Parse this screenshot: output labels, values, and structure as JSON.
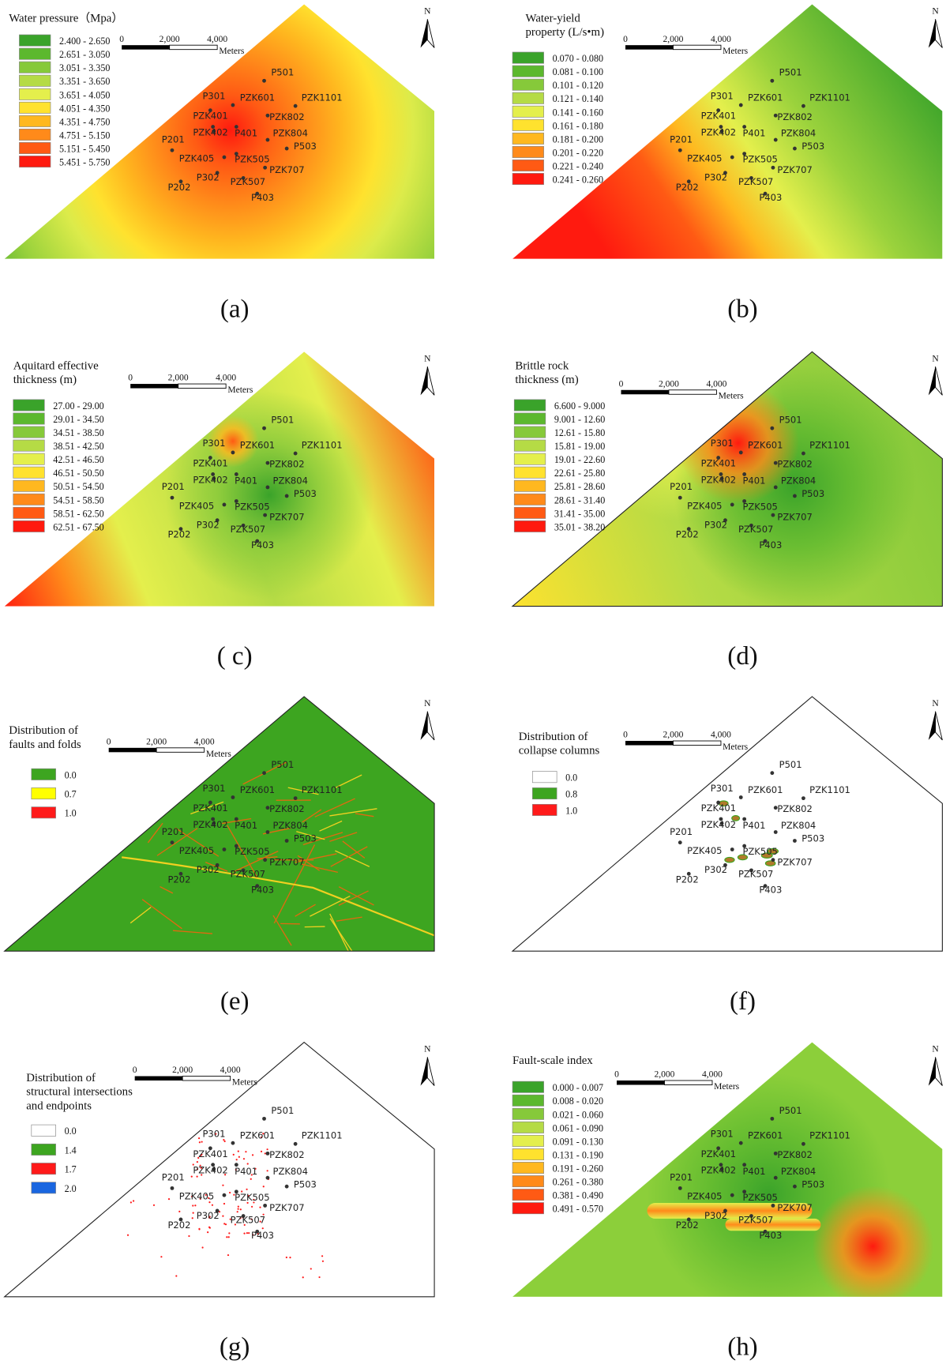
{
  "figure": {
    "north": "N",
    "scale_labels": [
      "0",
      "2,000",
      "4,000"
    ],
    "scale_unit": "Meters",
    "wells": [
      "P501",
      "P301",
      "PZK601",
      "PZK1101",
      "PZK401",
      "PZK802",
      "PZK402",
      "P401",
      "PZK804",
      "P201",
      "P503",
      "PZK405",
      "PZK505",
      "PZK707",
      "P302",
      "PZK507",
      "P202",
      "P403"
    ],
    "panels": [
      {
        "title_lines": [
          "Water pressure（Mpa）"
        ],
        "caption": "(a)",
        "legend": [
          {
            "label": "2.400 - 2.650",
            "color": "#3aa32a"
          },
          {
            "label": "2.651 - 3.050",
            "color": "#5cb82e"
          },
          {
            "label": "3.051 - 3.350",
            "color": "#86c93a"
          },
          {
            "label": "3.351 - 3.650",
            "color": "#b5db45"
          },
          {
            "label": "3.651 - 4.050",
            "color": "#e4ef4c"
          },
          {
            "label": "4.051 - 4.350",
            "color": "#ffe22e"
          },
          {
            "label": "4.351 - 4.750",
            "color": "#ffb81f"
          },
          {
            "label": "4.751 - 5.150",
            "color": "#ff8a1a"
          },
          {
            "label": "5.151 - 5.450",
            "color": "#ff5a14"
          },
          {
            "label": "5.451 - 5.750",
            "color": "#ff1a0f"
          }
        ]
      },
      {
        "title_lines": [
          "Water-yield",
          "property (L/s•m)"
        ],
        "caption": "(b)",
        "legend": [
          {
            "label": "0.070 - 0.080",
            "color": "#3aa32a"
          },
          {
            "label": "0.081 - 0.100",
            "color": "#5cb82e"
          },
          {
            "label": "0.101 - 0.120",
            "color": "#86c93a"
          },
          {
            "label": "0.121 - 0.140",
            "color": "#b5db45"
          },
          {
            "label": "0.141 - 0.160",
            "color": "#e4ef4c"
          },
          {
            "label": "0.161 - 0.180",
            "color": "#ffe22e"
          },
          {
            "label": "0.181 - 0.200",
            "color": "#ffb81f"
          },
          {
            "label": "0.201 - 0.220",
            "color": "#ff8a1a"
          },
          {
            "label": "0.221 - 0.240",
            "color": "#ff5a14"
          },
          {
            "label": "0.241 - 0.260",
            "color": "#ff1a0f"
          }
        ]
      },
      {
        "title_lines": [
          "Aquitard effective",
          "thickness (m)"
        ],
        "caption": "( c)",
        "legend": [
          {
            "label": "27.00 - 29.00",
            "color": "#3aa32a"
          },
          {
            "label": "29.01 - 34.50",
            "color": "#5cb82e"
          },
          {
            "label": "34.51 - 38.50",
            "color": "#86c93a"
          },
          {
            "label": "38.51 - 42.50",
            "color": "#b5db45"
          },
          {
            "label": "42.51 - 46.50",
            "color": "#e4ef4c"
          },
          {
            "label": "46.51 - 50.50",
            "color": "#ffe22e"
          },
          {
            "label": "50.51 - 54.50",
            "color": "#ffb81f"
          },
          {
            "label": "54.51 - 58.50",
            "color": "#ff8a1a"
          },
          {
            "label": "58.51 - 62.50",
            "color": "#ff5a14"
          },
          {
            "label": "62.51 - 67.50",
            "color": "#ff1a0f"
          }
        ]
      },
      {
        "title_lines": [
          "Brittle rock",
          "thickness (m)"
        ],
        "caption": "(d)",
        "legend": [
          {
            "label": "6.600 - 9.000",
            "color": "#3aa32a"
          },
          {
            "label": "9.001 - 12.60",
            "color": "#5cb82e"
          },
          {
            "label": "12.61 - 15.80",
            "color": "#86c93a"
          },
          {
            "label": "15.81 - 19.00",
            "color": "#b5db45"
          },
          {
            "label": "19.01 - 22.60",
            "color": "#e4ef4c"
          },
          {
            "label": "22.61 - 25.80",
            "color": "#ffe22e"
          },
          {
            "label": "25.81 - 28.60",
            "color": "#ffb81f"
          },
          {
            "label": "28.61 - 31.40",
            "color": "#ff8a1a"
          },
          {
            "label": "31.41 - 35.00",
            "color": "#ff5a14"
          },
          {
            "label": "35.01 - 38.20",
            "color": "#ff1a0f"
          }
        ]
      },
      {
        "title_lines": [
          "Distribution of",
          "faults and folds"
        ],
        "caption": "(e)",
        "legend": [
          {
            "label": "0.0",
            "color": "#3da520"
          },
          {
            "label": "0.7",
            "color": "#ffff00"
          },
          {
            "label": "1.0",
            "color": "#ff1a1a"
          }
        ]
      },
      {
        "title_lines": [
          "Distribution of",
          "collapse columns"
        ],
        "caption": "(f)",
        "legend": [
          {
            "label": "0.0",
            "color": "#ffffff"
          },
          {
            "label": "0.8",
            "color": "#3da520"
          },
          {
            "label": "1.0",
            "color": "#ff1a1a"
          }
        ]
      },
      {
        "title_lines": [
          "Distribution of",
          "structural intersections",
          "and endpoints"
        ],
        "caption": "(g)",
        "legend": [
          {
            "label": "0.0",
            "color": "#ffffff"
          },
          {
            "label": "1.4",
            "color": "#3da520"
          },
          {
            "label": "1.7",
            "color": "#ff1a1a"
          },
          {
            "label": "2.0",
            "color": "#1a66e0"
          }
        ]
      },
      {
        "title_lines": [
          "Fault-scale index"
        ],
        "caption": "(h)",
        "legend": [
          {
            "label": "0.000 - 0.007",
            "color": "#3aa32a"
          },
          {
            "label": "0.008 - 0.020",
            "color": "#5cb82e"
          },
          {
            "label": "0.021 - 0.060",
            "color": "#86c93a"
          },
          {
            "label": "0.061 - 0.090",
            "color": "#b5db45"
          },
          {
            "label": "0.091 - 0.130",
            "color": "#e4ef4c"
          },
          {
            "label": "0.131 - 0.190",
            "color": "#ffe22e"
          },
          {
            "label": "0.191 - 0.260",
            "color": "#ffb81f"
          },
          {
            "label": "0.261 - 0.380",
            "color": "#ff8a1a"
          },
          {
            "label": "0.381 - 0.490",
            "color": "#ff5a14"
          },
          {
            "label": "0.491 - 0.570",
            "color": "#ff1a0f"
          }
        ]
      }
    ]
  }
}
